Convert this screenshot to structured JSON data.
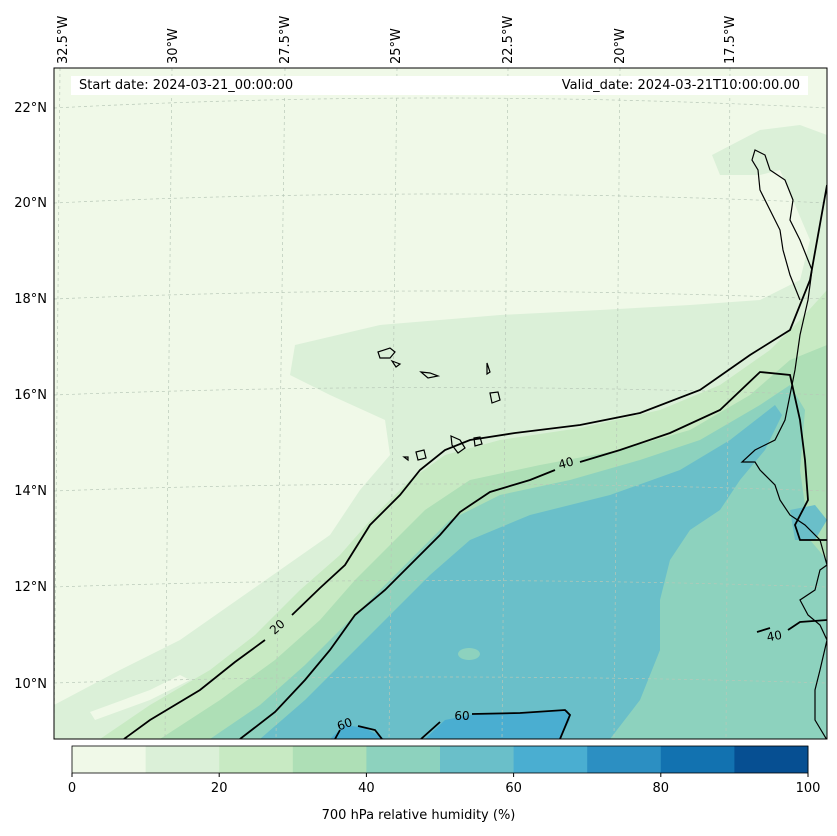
{
  "map": {
    "lon_labels": [
      "32.5°W",
      "30°W",
      "27.5°W",
      "25°W",
      "22.5°W",
      "20°W",
      "17.5°W"
    ],
    "lat_labels": [
      "22°N",
      "20°N",
      "18°N",
      "16°N",
      "14°N",
      "12°N",
      "10°N"
    ],
    "start_label": "Start date: 2024-03-21_00:00:00",
    "valid_label": "Valid_date: 2024-03-21T10:00:00.00",
    "contour_labels": [
      "20",
      "40",
      "60",
      "60",
      "40"
    ]
  },
  "colorbar": {
    "title": "700 hPa relative humidity (%)",
    "ticks": [
      "0",
      "20",
      "40",
      "60",
      "80",
      "100"
    ],
    "colors": [
      "#f0f9e8",
      "#dbf0d8",
      "#c8eac3",
      "#aedfb6",
      "#8dd2be",
      "#6abfc9",
      "#4aaed1",
      "#2c8fc2",
      "#1272b0",
      "#064f92"
    ]
  }
}
